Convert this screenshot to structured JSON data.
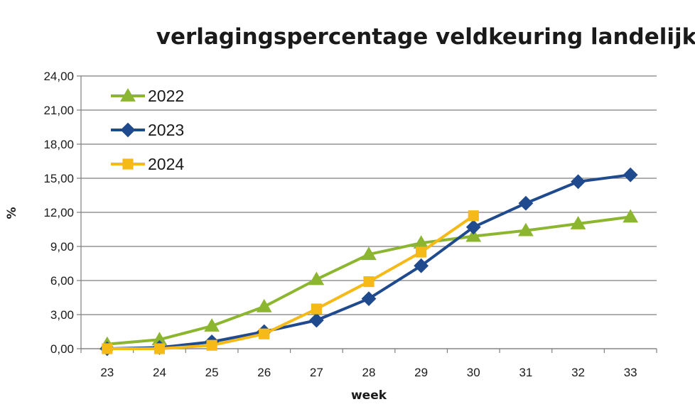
{
  "chart_data": {
    "type": "line",
    "title": "verlagingspercentage veldkeuring landelijk",
    "xlabel": "week",
    "ylabel": "%",
    "x": [
      23,
      24,
      25,
      26,
      27,
      28,
      29,
      30,
      31,
      32,
      33
    ],
    "x_tick_labels": [
      "23",
      "24",
      "25",
      "26",
      "27",
      "28",
      "29",
      "30",
      "31",
      "32",
      "33"
    ],
    "ylim": [
      0,
      24
    ],
    "y_ticks": [
      0,
      3,
      6,
      9,
      12,
      15,
      18,
      21,
      24
    ],
    "y_tick_labels": [
      "0,00",
      "3,00",
      "6,00",
      "9,00",
      "12,00",
      "15,00",
      "18,00",
      "21,00",
      "24,00"
    ],
    "grid": "horizontal",
    "legend_position": "top-left",
    "series": [
      {
        "name": "2022",
        "color": "#8DB630",
        "marker": "triangle",
        "values": [
          0.4,
          0.8,
          2.0,
          3.7,
          6.1,
          8.3,
          9.3,
          9.9,
          10.4,
          11.0,
          11.6
        ]
      },
      {
        "name": "2023",
        "color": "#1F4B8E",
        "marker": "diamond",
        "values": [
          0.0,
          0.1,
          0.6,
          1.5,
          2.5,
          4.4,
          7.3,
          10.7,
          12.8,
          14.7,
          15.3
        ]
      },
      {
        "name": "2024",
        "color": "#F5BA17",
        "marker": "square",
        "values": [
          0.0,
          0.0,
          0.3,
          1.3,
          3.5,
          5.9,
          8.5,
          11.7,
          null,
          null,
          null
        ]
      }
    ]
  }
}
